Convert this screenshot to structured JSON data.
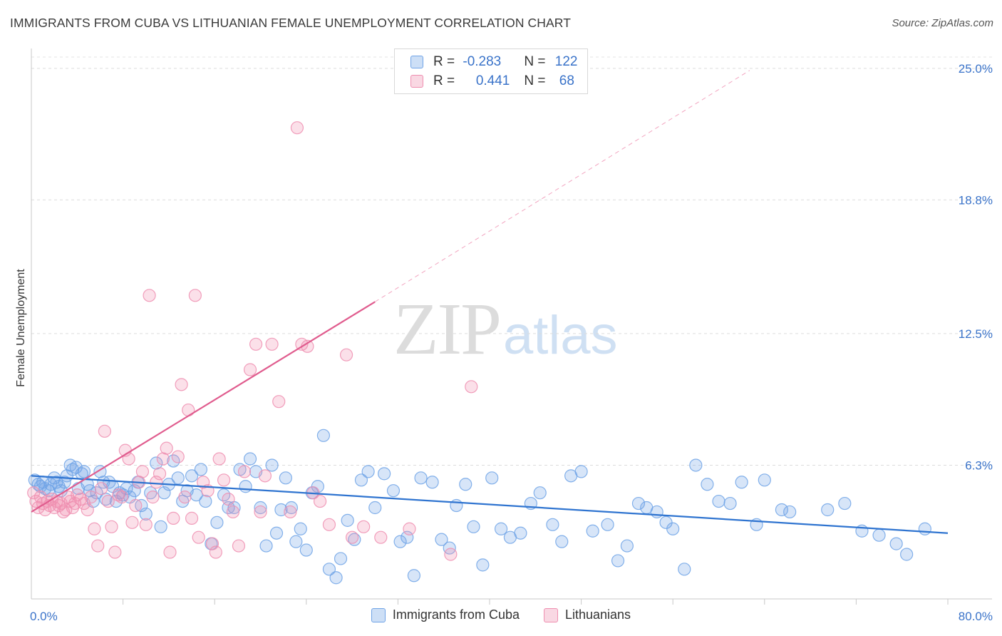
{
  "header": {
    "title": "IMMIGRANTS FROM CUBA VS LITHUANIAN FEMALE UNEMPLOYMENT CORRELATION CHART",
    "source": "Source: ZipAtlas.com"
  },
  "watermark": {
    "zip": "ZIP",
    "atlas": "atlas"
  },
  "legend_top": {
    "rows": [
      {
        "r_label": "R = ",
        "r_value": "-0.283",
        "n_label": "N = ",
        "n_value": "122",
        "color": "#6fa3e6"
      },
      {
        "r_label": "R = ",
        "r_value": "0.441",
        "n_label": "N = ",
        "n_value": "68",
        "color": "#ef8eb0"
      }
    ]
  },
  "legend_bottom": {
    "items": [
      {
        "label": "Immigrants from Cuba",
        "color": "#6fa3e6"
      },
      {
        "label": "Lithuanians",
        "color": "#ef8eb0"
      }
    ]
  },
  "chart_data": {
    "type": "scatter",
    "title": "IMMIGRANTS FROM CUBA VS LITHUANIAN FEMALE UNEMPLOYMENT CORRELATION CHART",
    "xlabel": "",
    "ylabel": "Female Unemployment",
    "xlim": [
      0,
      80
    ],
    "ylim": [
      0,
      25.8
    ],
    "x_tick_labels": [
      "0.0%",
      "80.0%"
    ],
    "y_ticks": [
      6.3,
      12.5,
      18.8,
      25.0
    ],
    "y_tick_labels": [
      "6.3%",
      "12.5%",
      "18.8%",
      "25.0%"
    ],
    "grid": true,
    "legend": "top-center",
    "series": [
      {
        "name": "Immigrants from Cuba",
        "color": "#6fa3e6",
        "line_color": "#2f74d0",
        "trend": {
          "x": [
            0,
            80
          ],
          "y": [
            5.8,
            3.1
          ]
        },
        "points": [
          [
            0.3,
            5.6
          ],
          [
            0.6,
            5.4
          ],
          [
            0.8,
            5.3
          ],
          [
            1.0,
            5.5
          ],
          [
            1.2,
            5.2
          ],
          [
            1.5,
            5.1
          ],
          [
            1.7,
            5.4
          ],
          [
            2.0,
            5.7
          ],
          [
            2.2,
            5.5
          ],
          [
            2.4,
            5.3
          ],
          [
            2.6,
            5.1
          ],
          [
            2.9,
            5.5
          ],
          [
            3.1,
            5.8
          ],
          [
            3.4,
            6.3
          ],
          [
            3.6,
            6.1
          ],
          [
            3.9,
            6.2
          ],
          [
            4.1,
            5.2
          ],
          [
            4.4,
            5.9
          ],
          [
            4.6,
            6.0
          ],
          [
            4.9,
            5.4
          ],
          [
            5.1,
            5.1
          ],
          [
            5.4,
            4.6
          ],
          [
            5.7,
            5.0
          ],
          [
            6.0,
            6.0
          ],
          [
            6.3,
            5.5
          ],
          [
            6.5,
            4.7
          ],
          [
            6.8,
            5.5
          ],
          [
            7.1,
            5.3
          ],
          [
            7.4,
            4.6
          ],
          [
            7.7,
            5.0
          ],
          [
            8.0,
            4.9
          ],
          [
            8.3,
            5.2
          ],
          [
            8.6,
            4.8
          ],
          [
            9.0,
            5.1
          ],
          [
            9.3,
            5.5
          ],
          [
            9.6,
            4.4
          ],
          [
            10.0,
            4.0
          ],
          [
            10.4,
            5.0
          ],
          [
            10.9,
            6.4
          ],
          [
            11.3,
            3.4
          ],
          [
            11.6,
            5.0
          ],
          [
            12.0,
            5.4
          ],
          [
            12.4,
            6.5
          ],
          [
            12.8,
            5.7
          ],
          [
            13.2,
            4.6
          ],
          [
            13.6,
            5.1
          ],
          [
            14.0,
            5.8
          ],
          [
            14.4,
            4.9
          ],
          [
            14.8,
            6.1
          ],
          [
            15.2,
            4.6
          ],
          [
            15.7,
            2.6
          ],
          [
            16.2,
            3.6
          ],
          [
            16.8,
            4.9
          ],
          [
            17.2,
            4.3
          ],
          [
            17.7,
            4.3
          ],
          [
            18.2,
            6.1
          ],
          [
            18.7,
            5.3
          ],
          [
            19.1,
            6.6
          ],
          [
            19.6,
            6.0
          ],
          [
            20.0,
            4.3
          ],
          [
            20.5,
            2.5
          ],
          [
            21.0,
            6.3
          ],
          [
            21.4,
            3.1
          ],
          [
            21.8,
            4.2
          ],
          [
            22.2,
            5.7
          ],
          [
            22.7,
            4.3
          ],
          [
            23.1,
            2.7
          ],
          [
            23.5,
            3.3
          ],
          [
            24.0,
            2.3
          ],
          [
            24.5,
            5.0
          ],
          [
            25.0,
            5.3
          ],
          [
            25.5,
            7.7
          ],
          [
            26.0,
            1.4
          ],
          [
            26.6,
            1.0
          ],
          [
            27.0,
            1.9
          ],
          [
            27.6,
            3.7
          ],
          [
            28.2,
            2.8
          ],
          [
            28.8,
            5.6
          ],
          [
            29.4,
            6.0
          ],
          [
            30.0,
            4.3
          ],
          [
            30.8,
            5.9
          ],
          [
            31.6,
            5.1
          ],
          [
            32.2,
            2.7
          ],
          [
            32.8,
            2.9
          ],
          [
            33.4,
            1.1
          ],
          [
            34.0,
            5.7
          ],
          [
            35.0,
            5.5
          ],
          [
            35.8,
            2.8
          ],
          [
            36.5,
            2.4
          ],
          [
            37.1,
            4.4
          ],
          [
            37.9,
            5.4
          ],
          [
            38.6,
            3.4
          ],
          [
            39.4,
            1.6
          ],
          [
            40.2,
            5.7
          ],
          [
            41.0,
            3.3
          ],
          [
            41.8,
            2.9
          ],
          [
            42.7,
            3.1
          ],
          [
            43.6,
            4.5
          ],
          [
            44.4,
            5.0
          ],
          [
            45.5,
            3.5
          ],
          [
            46.3,
            2.7
          ],
          [
            47.1,
            5.8
          ],
          [
            48.0,
            6.0
          ],
          [
            49.0,
            3.2
          ],
          [
            50.3,
            3.5
          ],
          [
            51.2,
            1.8
          ],
          [
            52.0,
            2.5
          ],
          [
            53.0,
            4.5
          ],
          [
            53.7,
            4.3
          ],
          [
            54.6,
            4.1
          ],
          [
            55.4,
            3.6
          ],
          [
            56.0,
            3.3
          ],
          [
            57.0,
            1.4
          ],
          [
            58.0,
            6.3
          ],
          [
            59.0,
            5.4
          ],
          [
            60.0,
            4.6
          ],
          [
            61.0,
            4.5
          ],
          [
            62.0,
            5.5
          ],
          [
            63.3,
            3.5
          ],
          [
            64.0,
            5.6
          ],
          [
            65.5,
            4.2
          ],
          [
            66.2,
            4.1
          ],
          [
            69.5,
            4.2
          ],
          [
            71.0,
            4.5
          ],
          [
            72.5,
            3.2
          ],
          [
            74.0,
            3.0
          ],
          [
            75.5,
            2.6
          ],
          [
            76.4,
            2.1
          ],
          [
            78.0,
            3.3
          ]
        ]
      },
      {
        "name": "Lithuanians",
        "color": "#ef8eb0",
        "line_color": "#e05c8e",
        "trend": {
          "x": [
            0,
            30
          ],
          "y": [
            4.1,
            14.0
          ]
        },
        "trend_dashed": {
          "x": [
            30,
            62.7
          ],
          "y": [
            14.0,
            24.9
          ]
        },
        "points": [
          [
            0.2,
            5.0
          ],
          [
            0.4,
            4.6
          ],
          [
            0.6,
            4.3
          ],
          [
            0.8,
            4.8
          ],
          [
            1.0,
            4.5
          ],
          [
            1.2,
            4.2
          ],
          [
            1.4,
            4.6
          ],
          [
            1.6,
            4.4
          ],
          [
            1.8,
            4.7
          ],
          [
            2.0,
            4.3
          ],
          [
            2.2,
            4.6
          ],
          [
            2.4,
            4.4
          ],
          [
            2.6,
            4.5
          ],
          [
            2.8,
            4.1
          ],
          [
            3.0,
            4.2
          ],
          [
            3.2,
            4.8
          ],
          [
            3.4,
            4.6
          ],
          [
            3.6,
            4.3
          ],
          [
            3.8,
            4.5
          ],
          [
            4.0,
            4.9
          ],
          [
            4.3,
            4.7
          ],
          [
            4.6,
            4.5
          ],
          [
            4.9,
            4.2
          ],
          [
            5.2,
            4.8
          ],
          [
            5.5,
            3.3
          ],
          [
            5.8,
            2.5
          ],
          [
            6.1,
            5.2
          ],
          [
            6.4,
            7.9
          ],
          [
            6.7,
            4.6
          ],
          [
            7.0,
            3.4
          ],
          [
            7.3,
            2.2
          ],
          [
            7.6,
            4.9
          ],
          [
            7.9,
            4.8
          ],
          [
            8.2,
            7.0
          ],
          [
            8.5,
            6.6
          ],
          [
            8.8,
            3.6
          ],
          [
            9.1,
            4.4
          ],
          [
            9.4,
            5.5
          ],
          [
            9.7,
            6.0
          ],
          [
            10.0,
            3.5
          ],
          [
            10.3,
            14.3
          ],
          [
            10.6,
            4.8
          ],
          [
            10.9,
            5.5
          ],
          [
            11.2,
            5.9
          ],
          [
            11.5,
            6.6
          ],
          [
            11.8,
            7.1
          ],
          [
            12.1,
            2.2
          ],
          [
            12.4,
            3.8
          ],
          [
            12.8,
            6.7
          ],
          [
            13.1,
            10.1
          ],
          [
            13.4,
            4.8
          ],
          [
            13.7,
            8.9
          ],
          [
            14.0,
            3.8
          ],
          [
            14.3,
            14.3
          ],
          [
            14.6,
            2.9
          ],
          [
            15.0,
            5.5
          ],
          [
            15.4,
            5.1
          ],
          [
            15.8,
            2.6
          ],
          [
            16.1,
            2.2
          ],
          [
            16.4,
            6.6
          ],
          [
            16.8,
            5.6
          ],
          [
            17.2,
            4.7
          ],
          [
            17.6,
            4.1
          ],
          [
            18.1,
            2.5
          ],
          [
            18.6,
            6.0
          ],
          [
            19.1,
            10.8
          ],
          [
            19.6,
            12.0
          ],
          [
            20.0,
            4.1
          ],
          [
            20.4,
            5.8
          ],
          [
            21.0,
            12.0
          ],
          [
            21.6,
            9.3
          ],
          [
            22.6,
            4.1
          ],
          [
            23.2,
            22.2
          ],
          [
            23.6,
            12.0
          ],
          [
            24.1,
            11.9
          ],
          [
            24.6,
            5.0
          ],
          [
            25.2,
            4.6
          ],
          [
            26.0,
            3.5
          ],
          [
            27.5,
            11.5
          ],
          [
            28.0,
            2.9
          ],
          [
            29.0,
            3.4
          ],
          [
            30.5,
            2.9
          ],
          [
            33.0,
            3.3
          ],
          [
            36.6,
            2.1
          ],
          [
            38.4,
            10.0
          ]
        ]
      }
    ]
  }
}
